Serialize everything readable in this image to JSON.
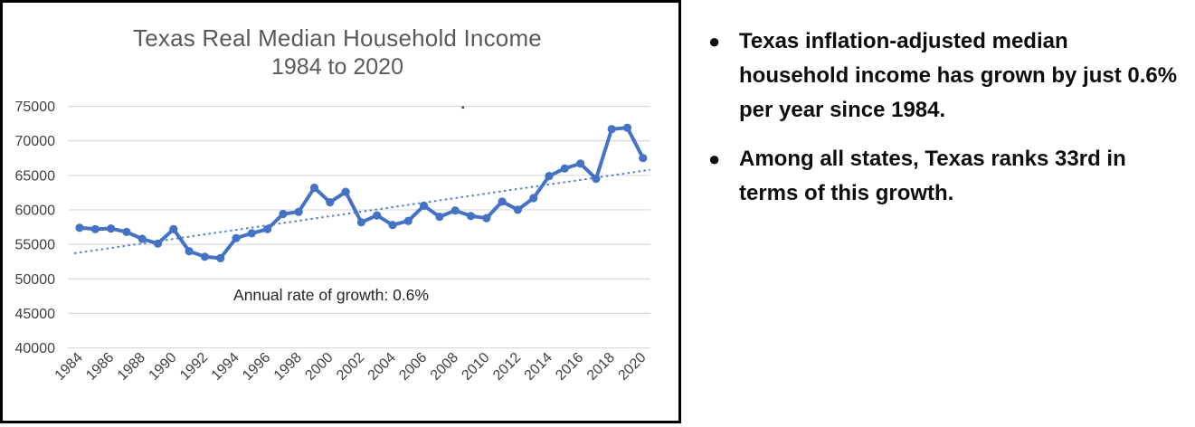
{
  "chart_data": {
    "type": "line",
    "title": "Texas Real Median Household Income",
    "subtitle": "1984 to 2020",
    "x": [
      1984,
      1985,
      1986,
      1987,
      1988,
      1989,
      1990,
      1991,
      1992,
      1993,
      1994,
      1995,
      1996,
      1997,
      1998,
      1999,
      2000,
      2001,
      2002,
      2003,
      2004,
      2005,
      2006,
      2007,
      2008,
      2009,
      2010,
      2011,
      2012,
      2013,
      2014,
      2015,
      2016,
      2017,
      2018,
      2019,
      2020
    ],
    "series": [
      {
        "name": "Texas real median household income",
        "values": [
          57400,
          57200,
          57300,
          56800,
          55800,
          55100,
          57200,
          54000,
          53200,
          53000,
          55900,
          56600,
          57200,
          59400,
          59700,
          63200,
          61100,
          62600,
          58200,
          59200,
          57800,
          58400,
          60600,
          59000,
          59900,
          59100,
          58800,
          61200,
          60000,
          61700,
          64900,
          66000,
          66700,
          64500,
          71700,
          71900,
          67500
        ]
      }
    ],
    "trendline": {
      "style": "dotted",
      "start": {
        "x": 1984,
        "y": 53700
      },
      "end": {
        "x": 2020,
        "y": 65800
      },
      "label": "Annual rate of growth: 0.6%"
    },
    "annotation": "Annual rate of growth: 0.6%",
    "ylim": [
      40000,
      75000
    ],
    "yticks": [
      75000,
      70000,
      65000,
      60000,
      55000,
      50000,
      45000,
      40000
    ],
    "xticks": [
      1984,
      1986,
      1988,
      1990,
      1992,
      1994,
      1996,
      1998,
      2000,
      2002,
      2004,
      2006,
      2008,
      2010,
      2012,
      2014,
      2016,
      2018,
      2020
    ],
    "grid": "horizontal",
    "legend": "none",
    "line_color": "#4472C4",
    "grid_color": "#d9d9d9",
    "axis_label_color": "#404040",
    "title_color": "#595959",
    "annotation_color": "#262626"
  },
  "bullets": {
    "items": [
      {
        "text": "Texas inflation-adjusted median household income has grown by just 0.6% per year since 1984."
      },
      {
        "text": "Among all states, Texas ranks 33rd in terms of this growth."
      }
    ]
  }
}
